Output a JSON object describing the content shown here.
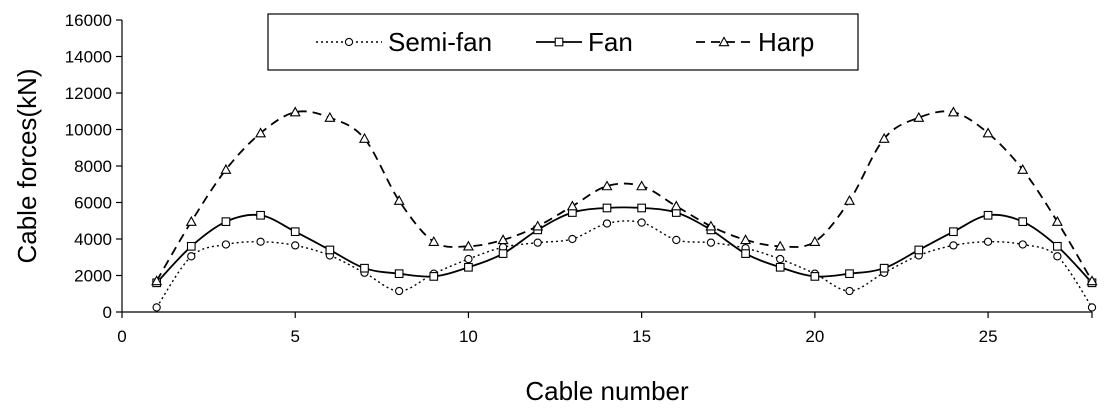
{
  "chart_data": {
    "type": "line",
    "xlabel": "Cable number",
    "ylabel": "Cable forces(kN)",
    "xlim": [
      0,
      28
    ],
    "ylim": [
      0,
      16000
    ],
    "x_ticks": [
      "0",
      "5",
      "10",
      "15",
      "20",
      "25"
    ],
    "y_ticks": [
      "0",
      "2000",
      "4000",
      "6000",
      "8000",
      "10000",
      "12000",
      "14000",
      "16000"
    ],
    "grid": false,
    "legend_position": "top-center",
    "x": [
      1,
      2,
      3,
      4,
      5,
      6,
      7,
      8,
      9,
      10,
      11,
      12,
      13,
      14,
      15,
      16,
      17,
      18,
      19,
      20,
      21,
      22,
      23,
      24,
      25,
      26,
      27,
      28
    ],
    "series": [
      {
        "name": "Semi-fan",
        "line_style": "dotted",
        "marker": "circle",
        "color": "#000000",
        "values": [
          250,
          3050,
          3700,
          3850,
          3650,
          3100,
          2150,
          1150,
          2100,
          2900,
          3550,
          3800,
          4000,
          4850,
          4900,
          3950,
          3800,
          3500,
          2900,
          2100,
          1150,
          2150,
          3100,
          3650,
          3850,
          3700,
          3050,
          250
        ]
      },
      {
        "name": "Fan",
        "line_style": "solid",
        "marker": "square",
        "color": "#000000",
        "values": [
          1600,
          3600,
          4950,
          5300,
          4400,
          3400,
          2400,
          2100,
          1950,
          2450,
          3200,
          4500,
          5450,
          5700,
          5700,
          5450,
          4500,
          3200,
          2450,
          1950,
          2100,
          2400,
          3400,
          4400,
          5300,
          4950,
          3600,
          1600
        ]
      },
      {
        "name": "Harp",
        "line_style": "dashed",
        "marker": "triangle",
        "color": "#000000",
        "values": [
          1700,
          4950,
          7800,
          9800,
          10950,
          10650,
          9500,
          6100,
          3850,
          3600,
          3950,
          4700,
          5800,
          6900,
          6900,
          5800,
          4700,
          3950,
          3600,
          3850,
          6100,
          9500,
          10650,
          10950,
          9800,
          7800,
          4950,
          1700
        ]
      }
    ]
  }
}
